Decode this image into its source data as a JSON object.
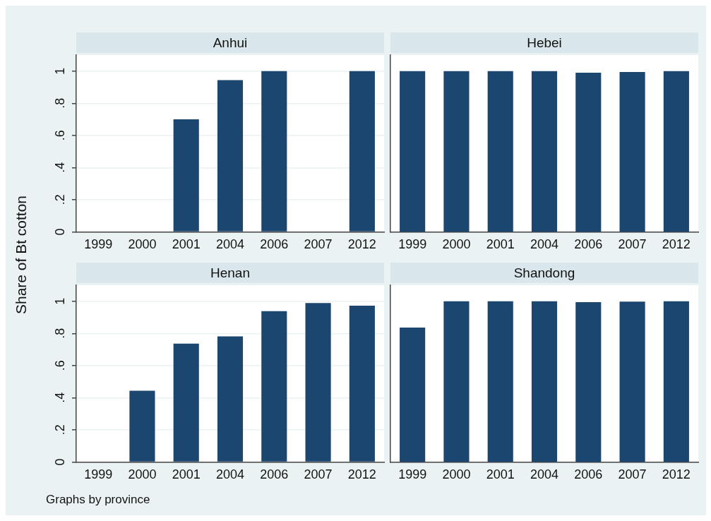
{
  "chart_data": [
    {
      "type": "bar",
      "title": "Anhui",
      "ylabel": "Share of Bt cotton",
      "categories": [
        "1999",
        "2000",
        "2001",
        "2004",
        "2006",
        "2007",
        "2012"
      ],
      "values": [
        null,
        null,
        0.7,
        0.944,
        1,
        null,
        1
      ],
      "color": "#1a4670",
      "ylim": [
        0,
        1.1
      ],
      "yticks": [
        {
          "value": 0,
          "label": "0"
        },
        {
          "value": 0.2,
          "label": ".2"
        },
        {
          "value": 0.4,
          "label": ".4"
        },
        {
          "value": 0.6,
          "label": ".6"
        },
        {
          "value": 0.8,
          "label": ".8"
        },
        {
          "value": 1,
          "label": "1"
        }
      ],
      "grid": "y",
      "legend": false
    },
    {
      "type": "bar",
      "title": "Hebei",
      "categories": [
        "1999",
        "2000",
        "2001",
        "2004",
        "2006",
        "2007",
        "2012"
      ],
      "values": [
        1,
        1,
        1,
        1,
        0.99,
        0.995,
        1
      ],
      "color": "#1a4670",
      "ylim": [
        0,
        1.1
      ],
      "yticks": [
        {
          "value": 0,
          "label": null
        },
        {
          "value": 0.2,
          "label": null
        },
        {
          "value": 0.4,
          "label": null
        },
        {
          "value": 0.6,
          "label": null
        },
        {
          "value": 0.8,
          "label": null
        },
        {
          "value": 1,
          "label": null
        }
      ],
      "grid": "y",
      "legend": false,
      "tick_labels": "x"
    },
    {
      "type": "bar",
      "title": "Henan",
      "categories": [
        "1999",
        "2000",
        "2001",
        "2004",
        "2006",
        "2007",
        "2012"
      ],
      "values": [
        null,
        0.443,
        0.737,
        0.781,
        0.939,
        0.989,
        0.973
      ],
      "color": "#1a4670",
      "ylim": [
        0,
        1.1
      ],
      "yticks": [
        {
          "value": 0,
          "label": "0"
        },
        {
          "value": 0.2,
          "label": ".2"
        },
        {
          "value": 0.4,
          "label": ".4"
        },
        {
          "value": 0.6,
          "label": ".6"
        },
        {
          "value": 0.8,
          "label": ".8"
        },
        {
          "value": 1,
          "label": "1"
        }
      ],
      "grid": "y",
      "legend": false,
      "annotations": [
        "Graphs by province"
      ]
    },
    {
      "type": "bar",
      "title": "Shandong",
      "categories": [
        "1999",
        "2000",
        "2001",
        "2004",
        "2006",
        "2007",
        "2012"
      ],
      "values": [
        0.836,
        1,
        1,
        1,
        0.995,
        0.998,
        1
      ],
      "color": "#1a4670",
      "ylim": [
        0,
        1.1
      ],
      "yticks": [
        {
          "value": 0,
          "label": null
        },
        {
          "value": 0.2,
          "label": null
        },
        {
          "value": 0.4,
          "label": null
        },
        {
          "value": 0.6,
          "label": null
        },
        {
          "value": 0.8,
          "label": null
        },
        {
          "value": 1,
          "label": null
        }
      ],
      "grid": "y",
      "legend": false,
      "tick_labels": "x"
    }
  ]
}
